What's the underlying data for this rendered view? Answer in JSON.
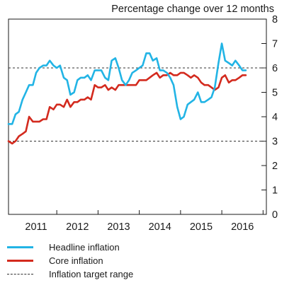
{
  "chart_data": {
    "type": "line",
    "title": "Percentage change over 12 months",
    "xlabel": "",
    "ylabel": "",
    "xlim": [
      2010.33,
      2016.58
    ],
    "ylim": [
      0,
      8
    ],
    "y_ticks": [
      0,
      1,
      2,
      3,
      4,
      5,
      6,
      7,
      8
    ],
    "y_axis_side": "right",
    "x_tick_labels": [
      "2011",
      "2012",
      "2013",
      "2014",
      "2015",
      "2016"
    ],
    "x_tick_positions": [
      2011.0,
      2012.0,
      2013.0,
      2014.0,
      2015.0,
      2016.0
    ],
    "grid": false,
    "legend_position": "bottom",
    "colors": {
      "headline": "#22b4e5",
      "core": "#d32a1e",
      "target": "#333333",
      "axis": "#1a1a1a"
    },
    "series": [
      {
        "name": "Headline inflation",
        "color": "#22b4e5",
        "x": [
          2010.33,
          2010.42,
          2010.5,
          2010.58,
          2010.67,
          2010.75,
          2010.83,
          2010.92,
          2011.0,
          2011.08,
          2011.17,
          2011.25,
          2011.33,
          2011.42,
          2011.5,
          2011.58,
          2011.67,
          2011.75,
          2011.83,
          2011.92,
          2012.0,
          2012.08,
          2012.17,
          2012.25,
          2012.33,
          2012.42,
          2012.5,
          2012.58,
          2012.67,
          2012.75,
          2012.83,
          2012.92,
          2013.0,
          2013.08,
          2013.17,
          2013.25,
          2013.33,
          2013.42,
          2013.5,
          2013.58,
          2013.67,
          2013.75,
          2013.83,
          2013.92,
          2014.0,
          2014.08,
          2014.17,
          2014.25,
          2014.33,
          2014.42,
          2014.5,
          2014.58,
          2014.67,
          2014.75,
          2014.83,
          2014.92,
          2015.0,
          2015.08,
          2015.17,
          2015.25,
          2015.33,
          2015.42,
          2015.5,
          2015.58,
          2015.67,
          2015.75,
          2015.83,
          2015.92,
          2016.0,
          2016.08
        ],
        "values": [
          3.7,
          3.7,
          4.1,
          4.2,
          4.7,
          5.0,
          5.3,
          5.3,
          5.8,
          6.0,
          6.1,
          6.1,
          6.3,
          6.1,
          6.0,
          6.1,
          5.6,
          5.5,
          4.9,
          5.0,
          5.5,
          5.6,
          5.6,
          5.7,
          5.5,
          5.9,
          5.9,
          5.9,
          5.6,
          5.5,
          6.3,
          6.4,
          6.0,
          5.5,
          5.3,
          5.5,
          5.8,
          5.9,
          6.0,
          6.1,
          6.6,
          6.6,
          6.3,
          6.4,
          5.9,
          5.9,
          5.8,
          5.6,
          5.3,
          4.4,
          3.9,
          4.0,
          4.5,
          4.6,
          4.7,
          5.0,
          4.6,
          4.6,
          4.7,
          4.8,
          5.2,
          6.2,
          7.0,
          6.3,
          6.2,
          6.1,
          6.3,
          6.1,
          5.9,
          5.9
        ]
      },
      {
        "name": "Core inflation",
        "color": "#d32a1e",
        "x": [
          2010.33,
          2010.42,
          2010.5,
          2010.58,
          2010.67,
          2010.75,
          2010.83,
          2010.92,
          2011.0,
          2011.08,
          2011.17,
          2011.25,
          2011.33,
          2011.42,
          2011.5,
          2011.58,
          2011.67,
          2011.75,
          2011.83,
          2011.92,
          2012.0,
          2012.08,
          2012.17,
          2012.25,
          2012.33,
          2012.42,
          2012.5,
          2012.58,
          2012.67,
          2012.75,
          2012.83,
          2012.92,
          2013.0,
          2013.08,
          2013.17,
          2013.25,
          2013.33,
          2013.42,
          2013.5,
          2013.58,
          2013.67,
          2013.75,
          2013.83,
          2013.92,
          2014.0,
          2014.08,
          2014.17,
          2014.25,
          2014.33,
          2014.42,
          2014.5,
          2014.58,
          2014.67,
          2014.75,
          2014.83,
          2014.92,
          2015.0,
          2015.08,
          2015.17,
          2015.25,
          2015.33,
          2015.42,
          2015.5,
          2015.58,
          2015.67,
          2015.75,
          2015.83,
          2015.92,
          2016.0,
          2016.08
        ],
        "values": [
          3.0,
          2.9,
          3.0,
          3.2,
          3.3,
          3.4,
          4.0,
          3.8,
          3.8,
          3.8,
          3.9,
          3.9,
          4.4,
          4.3,
          4.5,
          4.5,
          4.4,
          4.7,
          4.4,
          4.6,
          4.6,
          4.7,
          4.7,
          4.8,
          4.7,
          5.3,
          5.2,
          5.2,
          5.3,
          5.1,
          5.2,
          5.1,
          5.3,
          5.3,
          5.3,
          5.3,
          5.3,
          5.3,
          5.5,
          5.5,
          5.5,
          5.6,
          5.7,
          5.8,
          5.6,
          5.7,
          5.7,
          5.8,
          5.7,
          5.7,
          5.8,
          5.8,
          5.7,
          5.6,
          5.7,
          5.6,
          5.4,
          5.3,
          5.3,
          5.2,
          5.1,
          5.2,
          5.6,
          5.7,
          5.4,
          5.5,
          5.5,
          5.6,
          5.7,
          5.7
        ]
      }
    ],
    "target_range": {
      "name": "Inflation target range",
      "lower": 3,
      "upper": 6,
      "style": "dashed"
    }
  },
  "legend": {
    "items": [
      {
        "label": "Headline inflation",
        "color": "#22b4e5",
        "style": "solid"
      },
      {
        "label": "Core inflation",
        "color": "#d32a1e",
        "style": "solid"
      },
      {
        "label": "Inflation target range",
        "color": "#333333",
        "style": "dashed"
      }
    ]
  }
}
